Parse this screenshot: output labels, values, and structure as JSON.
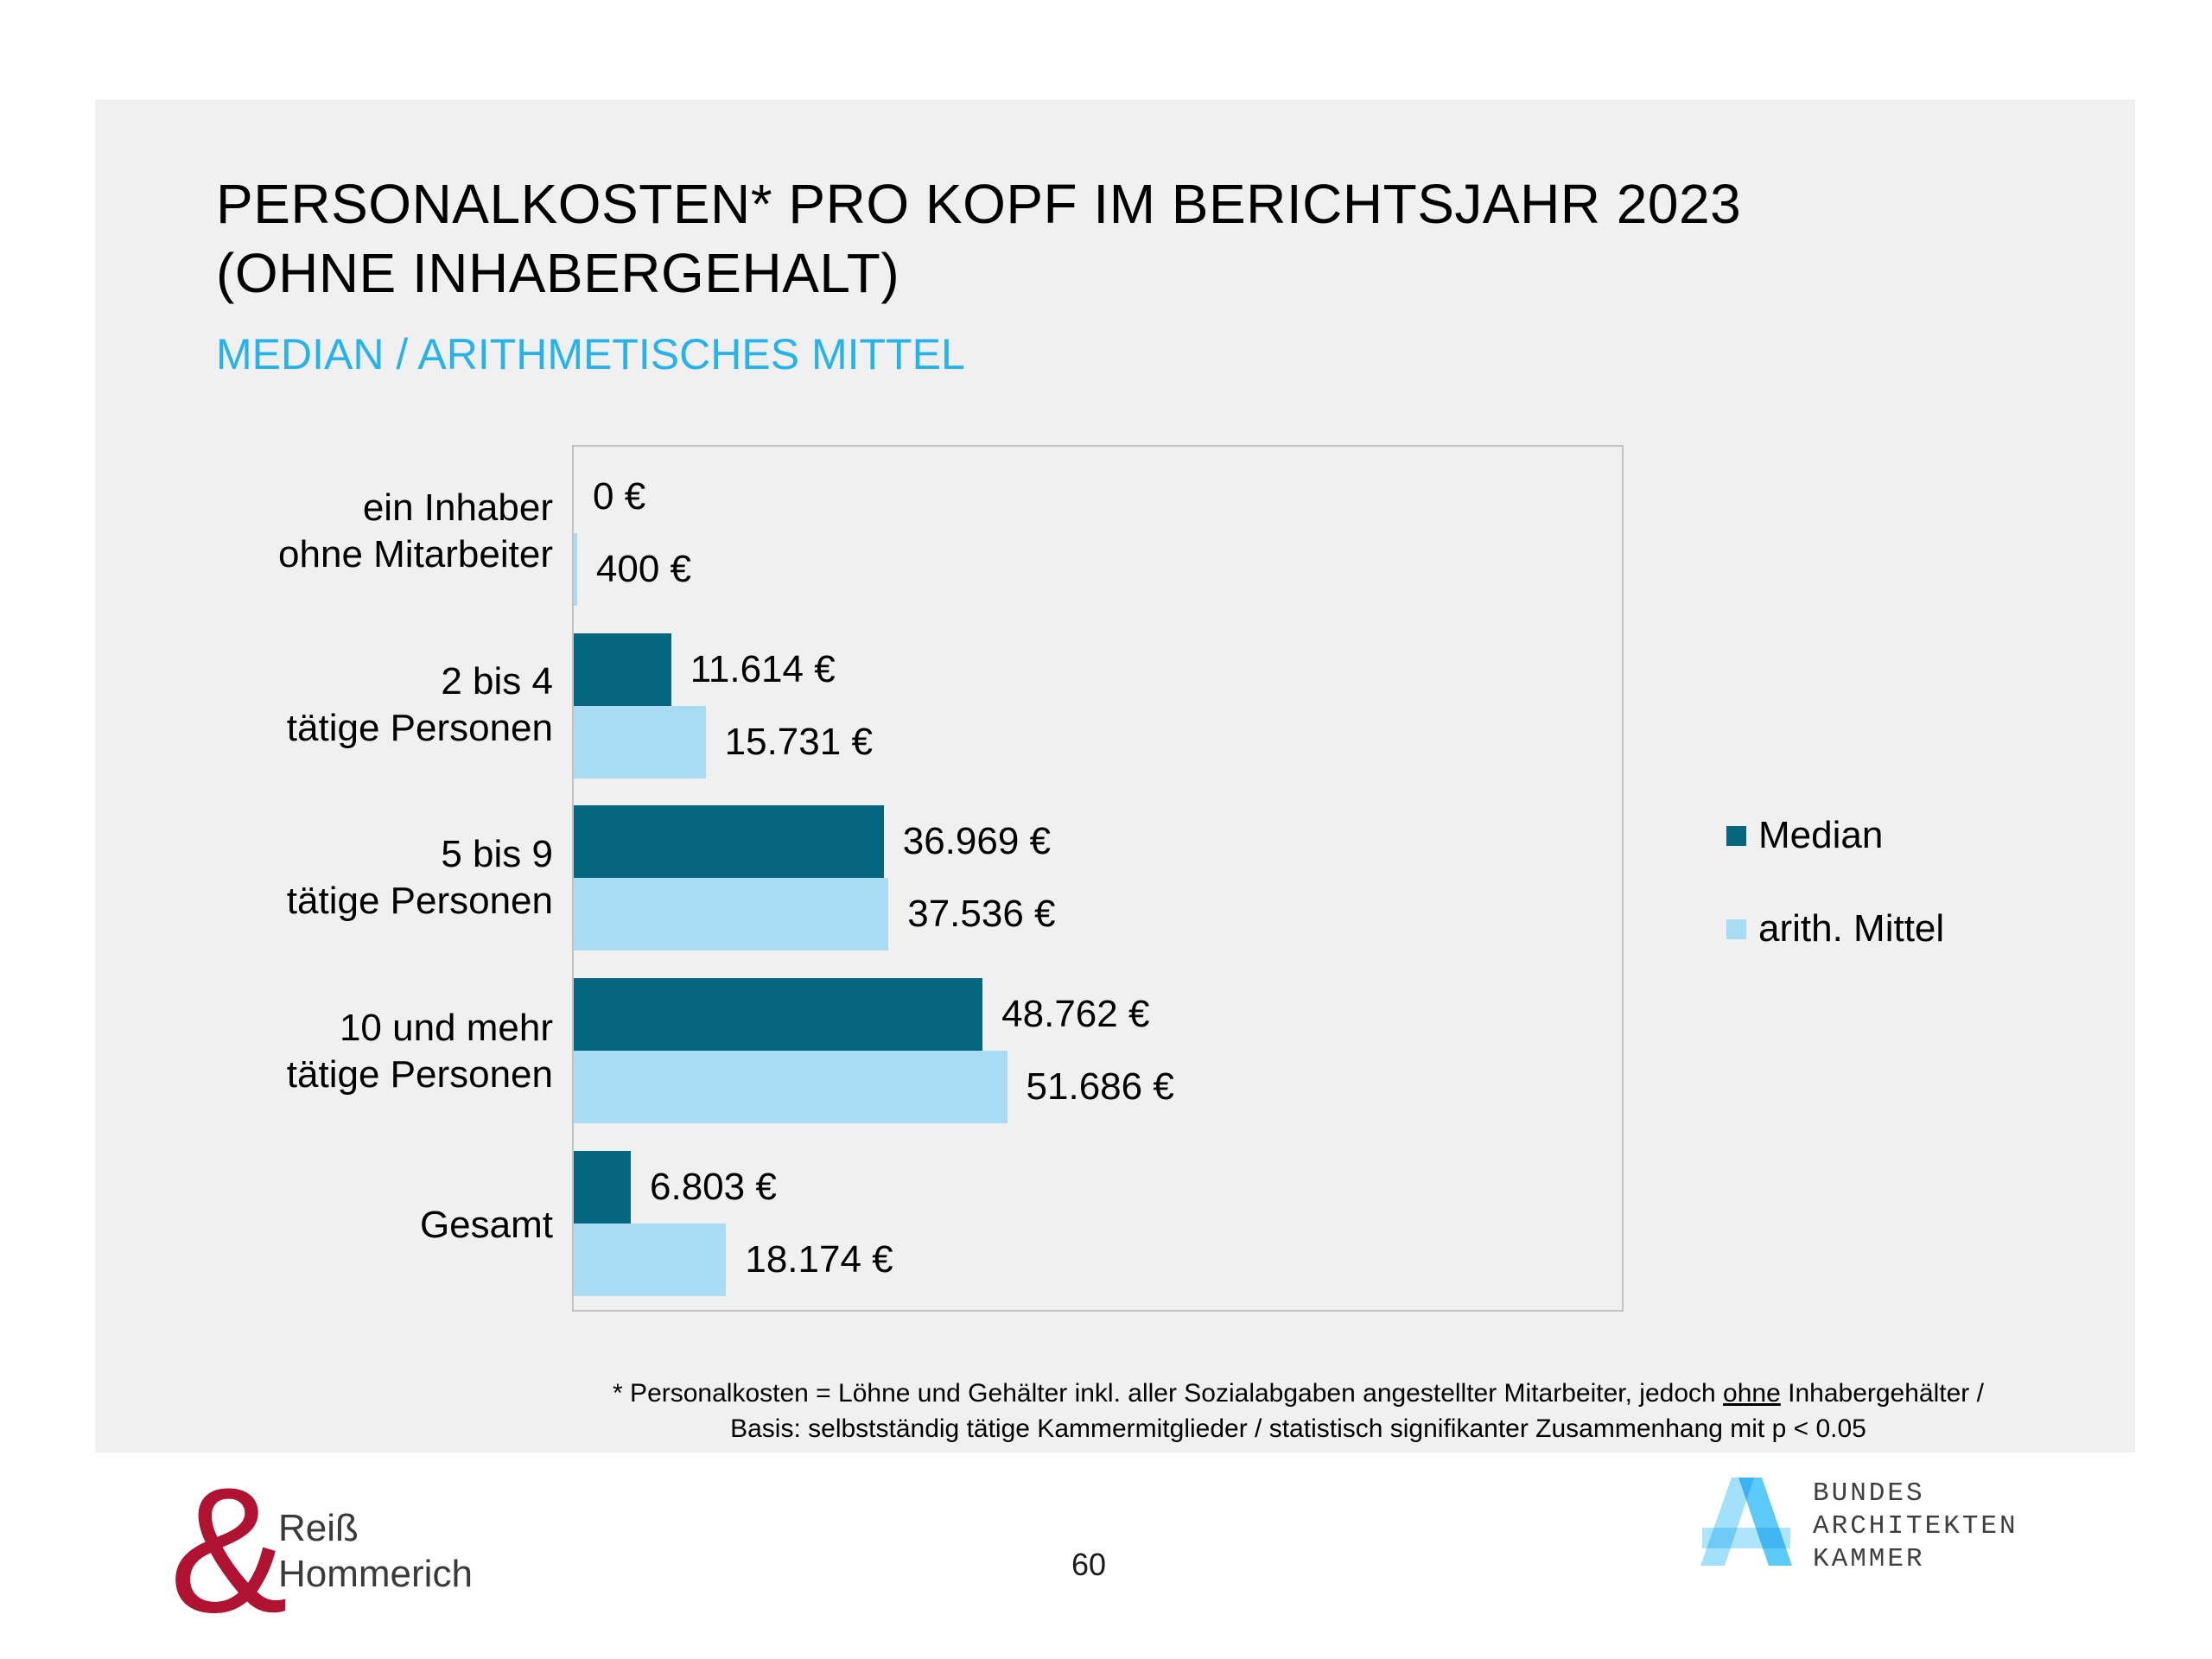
{
  "slide": {
    "title": "PERSONALKOSTEN* PRO KOPF IM BERICHTSJAHR 2023\n(OHNE INHABERGEHALT)",
    "subtitle": "MEDIAN / ARITHMETISCHES MITTEL",
    "page_number": "60"
  },
  "chart_data": {
    "type": "bar",
    "orientation": "horizontal",
    "title": "Personalkosten pro Kopf im Berichtsjahr 2023 (ohne Inhabergehalt)",
    "categories": [
      [
        "ein Inhaber",
        "ohne Mitarbeiter"
      ],
      [
        "2 bis 4",
        "tätige Personen"
      ],
      [
        "5 bis 9",
        "tätige Personen"
      ],
      [
        "10 und mehr",
        "tätige Personen"
      ],
      [
        "Gesamt"
      ]
    ],
    "series": [
      {
        "name": "Median",
        "color": "#05677F",
        "values": [
          0,
          11614,
          36969,
          48762,
          6803
        ],
        "labels": [
          "0 €",
          "11.614 €",
          "36.969 €",
          "48.762 €",
          "6.803 €"
        ]
      },
      {
        "name": "arith. Mittel",
        "color": "#A9DBF4",
        "values": [
          400,
          15731,
          37536,
          51686,
          18174
        ],
        "labels": [
          "400 €",
          "15.731 €",
          "37.536 €",
          "51.686 €",
          "18.174 €"
        ]
      }
    ],
    "value_unit": "€",
    "xlim": [
      0,
      125000
    ],
    "grid": false,
    "legend_position": "right"
  },
  "footnote": {
    "line1_pre": "* Personalkosten = Löhne und Gehälter inkl. aller Sozialabgaben angestellter Mitarbeiter, jedoch ",
    "line1_underlined": "ohne",
    "line1_post": " Inhabergehälter /",
    "line2": "Basis: selbstständig tätige Kammermitglieder / statistisch signifikanter Zusammenhang mit p < 0.05"
  },
  "footer": {
    "ampersand": "&",
    "reiss_hommerich": "Reiß\nHommerich",
    "bak_lines": "BUNDES\nARCHITEKTEN\nKAMMER"
  },
  "colors": {
    "panel_bg": "#F0F0F0",
    "subtitle_cyan": "#27B2EA",
    "median_bar": "#05677F",
    "mittel_bar": "#A9DBF4",
    "plot_border": "#C3C3C3",
    "reiss_red": "#B01331",
    "bak_blue": "#33BDF4"
  }
}
